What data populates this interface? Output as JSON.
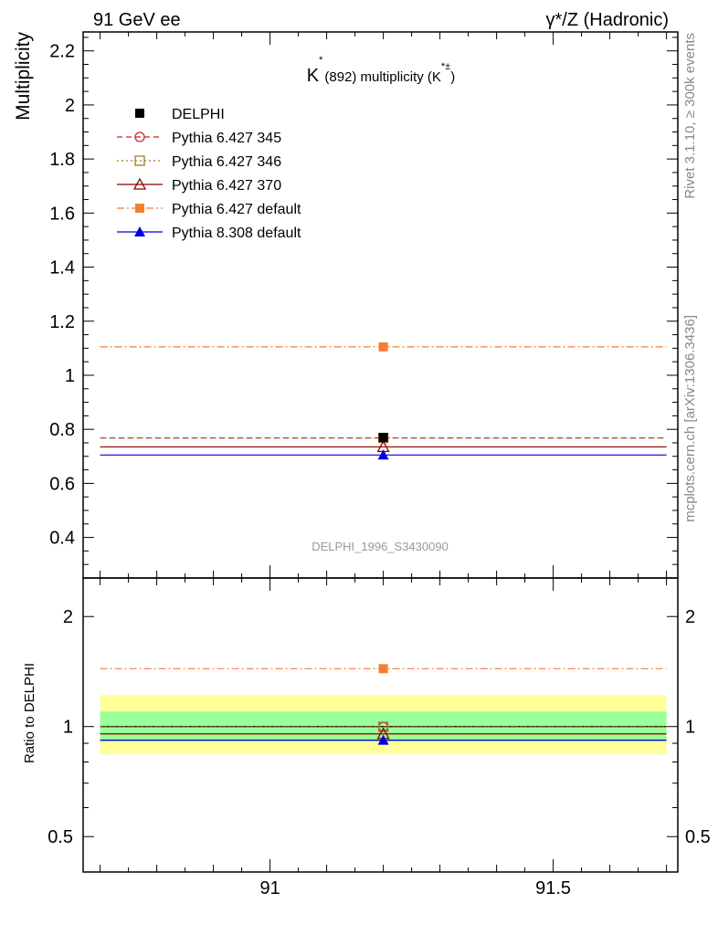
{
  "header": {
    "left": "91 GeV ee",
    "right": "γ*/Z (Hadronic)"
  },
  "side_text": {
    "rivet": "Rivet 3.1.10, ≥ 300k events",
    "mcplots": "mcplots.cern.ch [arXiv:1306.3436]"
  },
  "chart_data": [
    {
      "type": "scatter",
      "panel": "main",
      "title": {
        "main": "K",
        "sup": "*",
        "mid": "(892) multiplicity (K",
        "sup2": "*±",
        "end": ")"
      },
      "ylabel": "Multiplicity",
      "analysis_label": "DELPHI_1996_S3430090",
      "xlim": [
        90.67,
        91.72
      ],
      "ylim": [
        0.25,
        2.27
      ],
      "yticks": [
        0.4,
        0.6,
        0.8,
        1.0,
        1.2,
        1.4,
        1.6,
        1.8,
        2.0,
        2.2
      ],
      "ytick_labels": [
        "0.4",
        "0.6",
        "0.8",
        "1",
        "1.2",
        "1.4",
        "1.6",
        "1.8",
        "2",
        "2.2"
      ],
      "x_range": [
        90.7,
        91.7
      ],
      "x_point": 91.2,
      "series": [
        {
          "name": "DELPHI",
          "value": 0.77,
          "err": 0.0,
          "color": "#000000",
          "marker": "square-filled",
          "line": "none"
        },
        {
          "name": "Pythia 6.427 345",
          "value": 0.768,
          "color": "#c0282f",
          "marker": "circle-open",
          "line": "dashed"
        },
        {
          "name": "Pythia 6.427 346",
          "value": 0.768,
          "color": "#9e7a2e",
          "marker": "square-open",
          "line": "dotted"
        },
        {
          "name": "Pythia 6.427 370",
          "value": 0.735,
          "color": "#8b0000",
          "marker": "triangle-open",
          "line": "solid"
        },
        {
          "name": "Pythia 6.427 default",
          "value": 1.105,
          "color": "#f47e36",
          "marker": "square-filled",
          "line": "dashdot"
        },
        {
          "name": "Pythia 8.308 default",
          "value": 0.705,
          "color": "#0000dd",
          "marker": "triangle-filled",
          "line": "solid"
        }
      ]
    },
    {
      "type": "scatter",
      "panel": "ratio",
      "ylabel": "Ratio to DELPHI",
      "scale": "log",
      "ylim": [
        0.4,
        2.55
      ],
      "yticks": [
        0.5,
        1,
        2
      ],
      "ytick_labels": [
        "0.5",
        "1",
        "2"
      ],
      "xticks": [
        91,
        91.5
      ],
      "xtick_labels": [
        "91",
        "91.5"
      ],
      "bands": {
        "outer": {
          "low": 0.84,
          "high": 1.22,
          "color": "#ffff99"
        },
        "inner": {
          "low": 0.91,
          "high": 1.1,
          "color": "#99ff99"
        }
      },
      "series": [
        {
          "name": "Pythia 6.427 345",
          "value": 0.998
        },
        {
          "name": "Pythia 6.427 346",
          "value": 0.998
        },
        {
          "name": "Pythia 6.427 370",
          "value": 0.955
        },
        {
          "name": "Pythia 6.427 default",
          "value": 1.44
        },
        {
          "name": "Pythia 8.308 default",
          "value": 0.918
        }
      ]
    }
  ]
}
